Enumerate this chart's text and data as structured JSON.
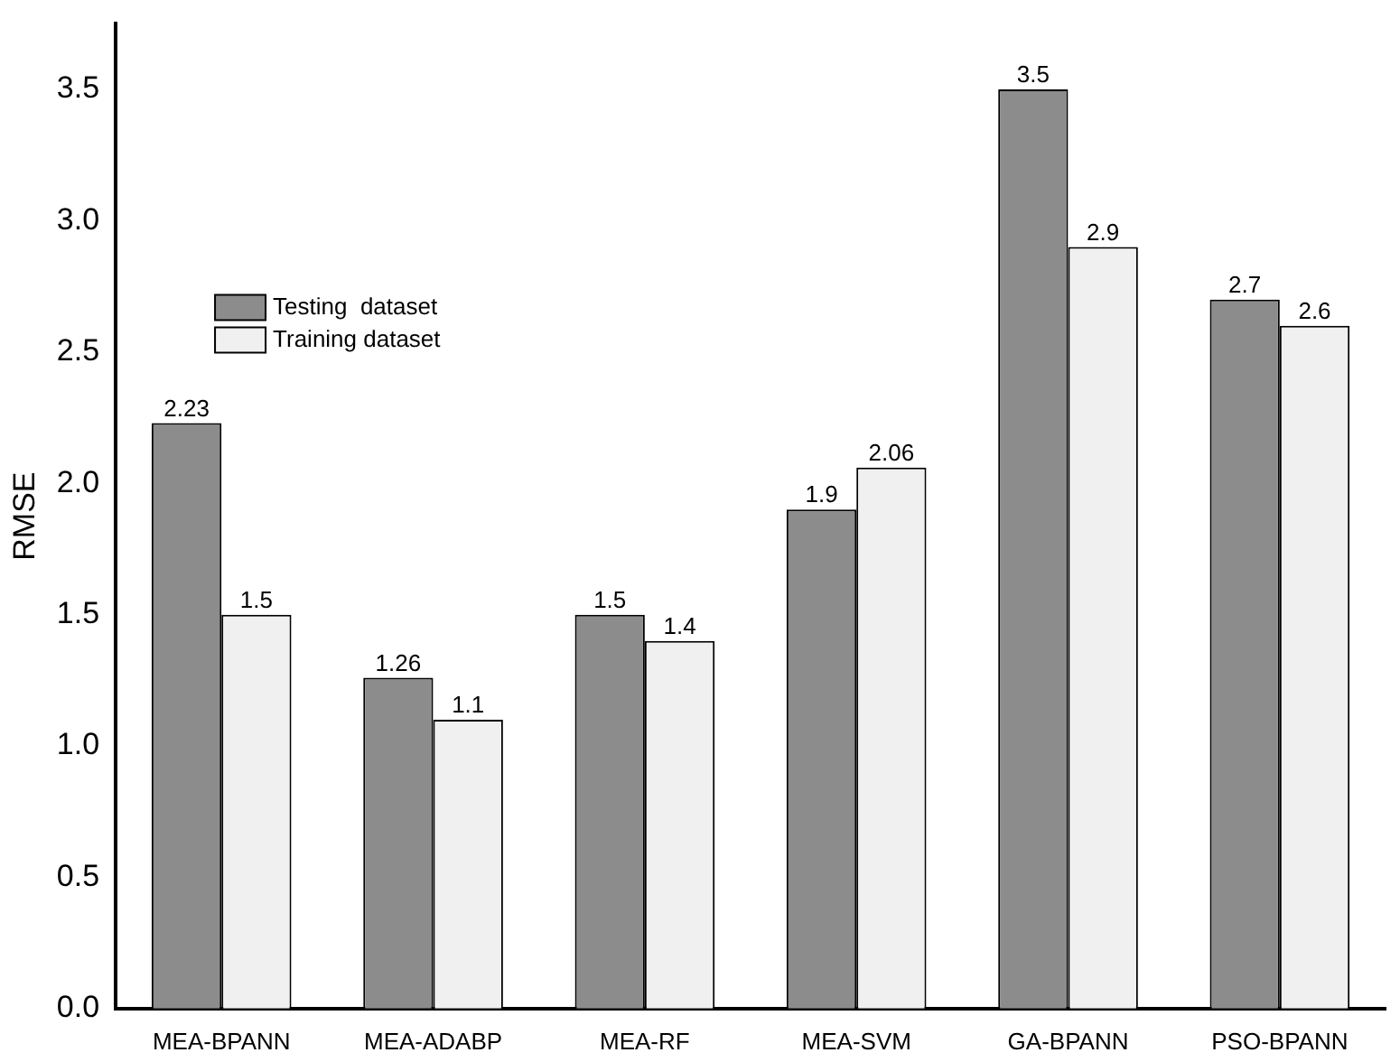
{
  "chart_data": {
    "type": "bar",
    "ylabel": "RMSE",
    "categories": [
      "MEA-BPANN",
      "MEA-ADABP",
      "MEA-RF",
      "MEA-SVM",
      "GA-BPANN",
      "PSO-BPANN"
    ],
    "series": [
      {
        "name": "Testing  dataset",
        "color": "#8c8c8c",
        "values": [
          2.23,
          1.26,
          1.5,
          1.9,
          3.5,
          2.7
        ]
      },
      {
        "name": "Training dataset",
        "color": "#f0f0f0",
        "values": [
          1.5,
          1.1,
          1.4,
          2.06,
          2.9,
          2.6
        ]
      }
    ],
    "ylim": [
      0,
      3.75
    ],
    "yticks": [
      {
        "value": 0,
        "label": "0.0"
      },
      {
        "value": 0.5,
        "label": "0.5"
      },
      {
        "value": 1,
        "label": "1.0"
      },
      {
        "value": 1.5,
        "label": "1.5"
      },
      {
        "value": 2,
        "label": "2.0"
      },
      {
        "value": 2.5,
        "label": "2.5"
      },
      {
        "value": 3,
        "label": "3.0"
      },
      {
        "value": 3.5,
        "label": "3.5"
      }
    ],
    "data_labels": true,
    "grid": false,
    "legend": "top left"
  }
}
